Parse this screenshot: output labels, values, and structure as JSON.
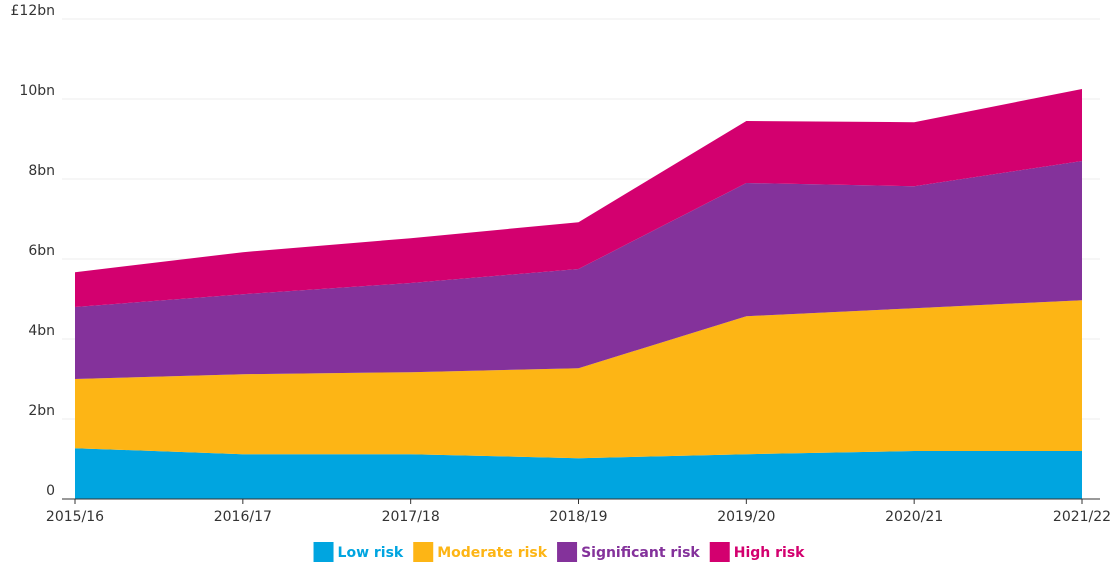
{
  "chart_data": {
    "type": "area",
    "stacked": true,
    "categories": [
      "2015/16",
      "2016/17",
      "2017/18",
      "2018/19",
      "2019/20",
      "2020/21",
      "2021/22"
    ],
    "series": [
      {
        "name": "Low risk",
        "color": "#00a5e0",
        "values": [
          1.27,
          1.12,
          1.12,
          1.02,
          1.12,
          1.2,
          1.2
        ]
      },
      {
        "name": "Moderate risk",
        "color": "#fdb515",
        "values": [
          1.73,
          2.0,
          2.05,
          2.25,
          3.45,
          3.57,
          3.77
        ]
      },
      {
        "name": "Significant risk",
        "color": "#84329b",
        "values": [
          1.8,
          2.0,
          2.23,
          2.48,
          3.33,
          3.05,
          3.48
        ]
      },
      {
        "name": "High risk",
        "color": "#d3006f",
        "values": [
          0.87,
          1.05,
          1.12,
          1.17,
          1.55,
          1.6,
          1.8
        ]
      }
    ],
    "ylim": [
      0,
      12
    ],
    "yticks": [
      0,
      {
        "value": 2,
        "label": "2bn"
      },
      {
        "value": 4,
        "label": "4bn"
      },
      {
        "value": 6,
        "label": "6bn"
      },
      {
        "value": 8,
        "label": "8bn"
      },
      {
        "value": 10,
        "label": "10bn"
      },
      {
        "value": 12,
        "label": "£12bn"
      }
    ],
    "grid": true,
    "legend": "bottom"
  }
}
